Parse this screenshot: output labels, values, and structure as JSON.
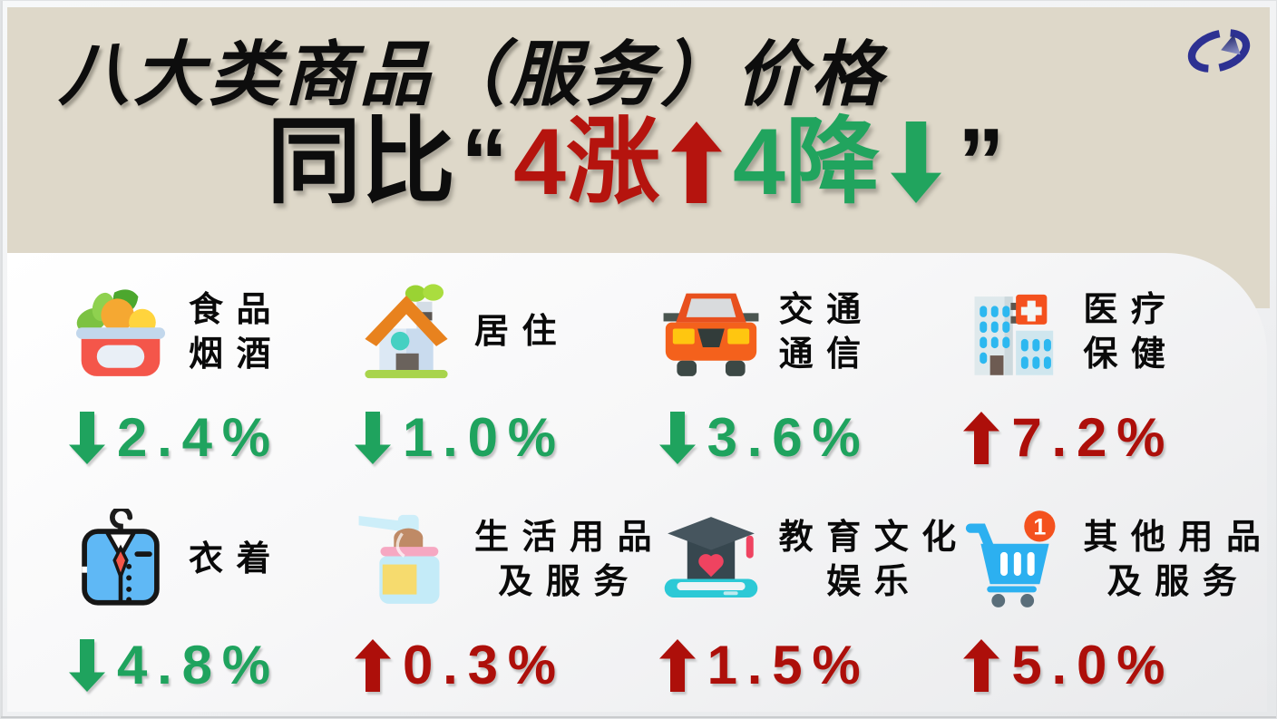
{
  "header": {
    "title": "八大类商品（服务）价格",
    "subtitle": {
      "prefix": "同比",
      "open_quote": "“",
      "up_text": "4涨",
      "down_text": "4降",
      "close_quote": "”"
    },
    "logo_icon": "national-bureau-of-statistics-logo-icon"
  },
  "colors": {
    "band_beige": "#ded8c9",
    "title_black": "#0d0d0d",
    "rise_red": "#b5140e",
    "fall_green": "#21a45e",
    "value_red": "#ad0f0a",
    "value_green": "#1fa35e",
    "logo_navy": "#2d3192"
  },
  "categories": [
    {
      "name_lines": [
        "食 品",
        "烟 酒"
      ],
      "icon": "food-basket-icon",
      "direction": "down",
      "value": "2.4%"
    },
    {
      "name_lines": [
        "居 住"
      ],
      "icon": "house-icon",
      "direction": "down",
      "value": "1.0%"
    },
    {
      "name_lines": [
        "交 通",
        "通 信"
      ],
      "icon": "car-icon",
      "direction": "down",
      "value": "3.6%"
    },
    {
      "name_lines": [
        "医 疗",
        "保 健"
      ],
      "icon": "hospital-icon",
      "direction": "up",
      "value": "7.2%"
    },
    {
      "name_lines": [
        "衣 着"
      ],
      "icon": "clothing-icon",
      "direction": "down",
      "value": "4.8%"
    },
    {
      "name_lines": [
        "生 活 用 品",
        "及 服 务"
      ],
      "icon": "soap-dispenser-icon",
      "direction": "up",
      "value": "0.3%"
    },
    {
      "name_lines": [
        "教 育 文 化",
        "娱 乐"
      ],
      "icon": "education-icon",
      "direction": "up",
      "value": "1.5%"
    },
    {
      "name_lines": [
        "其 他 用 品",
        "及 服 务"
      ],
      "icon": "shopping-cart-icon",
      "direction": "up",
      "value": "5.0%",
      "badge": "1"
    }
  ],
  "chart_data": {
    "type": "table",
    "title": "八大类商品（服务）价格",
    "subtitle": "同比“4涨4降”",
    "categories": [
      "食品烟酒",
      "居住",
      "交通通信",
      "医疗保健",
      "衣着",
      "生活用品及服务",
      "教育文化娱乐",
      "其他用品及服务"
    ],
    "values_pct": [
      -2.4,
      -1.0,
      -3.6,
      7.2,
      -4.8,
      0.3,
      1.5,
      5.0
    ],
    "directions": [
      "down",
      "down",
      "down",
      "up",
      "down",
      "up",
      "up",
      "up"
    ],
    "unit": "%"
  }
}
